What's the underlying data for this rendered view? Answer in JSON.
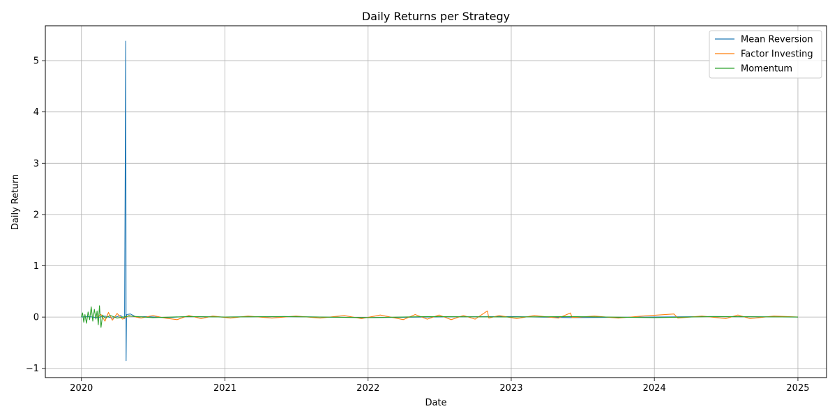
{
  "chart_data": {
    "type": "line",
    "title": "Daily Returns per Strategy",
    "xlabel": "Date",
    "ylabel": "Daily Return",
    "xlim": [
      "2019-10-01",
      "2025-03-15"
    ],
    "ylim": [
      -1.18,
      5.68
    ],
    "grid": true,
    "legend_position": "top-right",
    "x_ticks": [
      {
        "label": "2020",
        "date": "2020-01-01"
      },
      {
        "label": "2021",
        "date": "2021-01-01"
      },
      {
        "label": "2022",
        "date": "2022-01-01"
      },
      {
        "label": "2023",
        "date": "2023-01-01"
      },
      {
        "label": "2024",
        "date": "2024-01-01"
      },
      {
        "label": "2025",
        "date": "2025-01-01"
      }
    ],
    "y_ticks": [
      {
        "label": "−1",
        "value": -1
      },
      {
        "label": "0",
        "value": 0
      },
      {
        "label": "1",
        "value": 1
      },
      {
        "label": "2",
        "value": 2
      },
      {
        "label": "3",
        "value": 3
      },
      {
        "label": "4",
        "value": 4
      },
      {
        "label": "5",
        "value": 5
      }
    ],
    "series": [
      {
        "name": "Mean Reversion",
        "color": "#1f77b4",
        "points": [
          [
            "2020-01-01",
            0.0
          ],
          [
            "2020-01-20",
            0.01
          ],
          [
            "2020-02-10",
            -0.01
          ],
          [
            "2020-03-01",
            0.02
          ],
          [
            "2020-03-20",
            -0.02
          ],
          [
            "2020-04-10",
            0.03
          ],
          [
            "2020-04-20",
            -0.03
          ],
          [
            "2020-04-23",
            5.38
          ],
          [
            "2020-04-24",
            -0.85
          ],
          [
            "2020-04-25",
            0.05
          ],
          [
            "2020-05-05",
            0.06
          ],
          [
            "2020-05-20",
            0.0
          ],
          [
            "2020-06-15",
            0.01
          ],
          [
            "2020-08-01",
            -0.01
          ],
          [
            "2020-10-01",
            0.01
          ],
          [
            "2021-01-01",
            0.0
          ],
          [
            "2021-06-01",
            0.01
          ],
          [
            "2022-01-01",
            -0.01
          ],
          [
            "2022-06-01",
            0.0
          ],
          [
            "2023-01-01",
            0.01
          ],
          [
            "2023-06-01",
            -0.01
          ],
          [
            "2024-01-01",
            0.0
          ],
          [
            "2024-06-01",
            0.01
          ],
          [
            "2025-01-01",
            0.0
          ]
        ]
      },
      {
        "name": "Factor Investing",
        "color": "#ff7f0e",
        "points": [
          [
            "2020-02-10",
            0.0
          ],
          [
            "2020-02-20",
            0.05
          ],
          [
            "2020-03-01",
            -0.08
          ],
          [
            "2020-03-10",
            0.09
          ],
          [
            "2020-03-20",
            -0.06
          ],
          [
            "2020-04-01",
            0.07
          ],
          [
            "2020-04-15",
            -0.04
          ],
          [
            "2020-05-01",
            0.03
          ],
          [
            "2020-06-01",
            -0.02
          ],
          [
            "2020-07-01",
            0.03
          ],
          [
            "2020-08-01",
            -0.02
          ],
          [
            "2020-09-01",
            -0.05
          ],
          [
            "2020-10-01",
            0.03
          ],
          [
            "2020-11-01",
            -0.03
          ],
          [
            "2020-12-01",
            0.02
          ],
          [
            "2021-01-15",
            -0.02
          ],
          [
            "2021-03-01",
            0.02
          ],
          [
            "2021-05-01",
            -0.02
          ],
          [
            "2021-07-01",
            0.02
          ],
          [
            "2021-09-01",
            -0.02
          ],
          [
            "2021-11-01",
            0.03
          ],
          [
            "2021-12-15",
            -0.03
          ],
          [
            "2022-02-01",
            0.04
          ],
          [
            "2022-04-01",
            -0.05
          ],
          [
            "2022-05-01",
            0.05
          ],
          [
            "2022-06-01",
            -0.04
          ],
          [
            "2022-07-01",
            0.04
          ],
          [
            "2022-08-01",
            -0.05
          ],
          [
            "2022-09-01",
            0.03
          ],
          [
            "2022-10-01",
            -0.04
          ],
          [
            "2022-11-01",
            0.12
          ],
          [
            "2022-11-05",
            -0.02
          ],
          [
            "2022-12-01",
            0.03
          ],
          [
            "2023-01-15",
            -0.03
          ],
          [
            "2023-03-01",
            0.03
          ],
          [
            "2023-05-01",
            -0.02
          ],
          [
            "2023-06-01",
            0.08
          ],
          [
            "2023-06-05",
            -0.01
          ],
          [
            "2023-08-01",
            0.02
          ],
          [
            "2023-10-01",
            -0.02
          ],
          [
            "2023-12-01",
            0.02
          ],
          [
            "2024-02-20",
            0.06
          ],
          [
            "2024-03-01",
            -0.02
          ],
          [
            "2024-05-01",
            0.02
          ],
          [
            "2024-07-01",
            -0.03
          ],
          [
            "2024-08-01",
            0.04
          ],
          [
            "2024-09-01",
            -0.03
          ],
          [
            "2024-11-01",
            0.02
          ],
          [
            "2025-01-01",
            0.0
          ]
        ]
      },
      {
        "name": "Momentum",
        "color": "#2ca02c",
        "points": [
          [
            "2020-01-01",
            0.0
          ],
          [
            "2020-01-04",
            0.08
          ],
          [
            "2020-01-07",
            -0.1
          ],
          [
            "2020-01-10",
            0.05
          ],
          [
            "2020-01-14",
            -0.12
          ],
          [
            "2020-01-18",
            0.1
          ],
          [
            "2020-01-22",
            -0.05
          ],
          [
            "2020-01-26",
            0.2
          ],
          [
            "2020-01-30",
            -0.08
          ],
          [
            "2020-02-03",
            0.15
          ],
          [
            "2020-02-07",
            -0.04
          ],
          [
            "2020-02-10",
            0.12
          ],
          [
            "2020-02-13",
            -0.15
          ],
          [
            "2020-02-16",
            0.22
          ],
          [
            "2020-02-20",
            -0.2
          ],
          [
            "2020-02-24",
            0.04
          ],
          [
            "2020-03-01",
            -0.02
          ],
          [
            "2020-03-15",
            0.03
          ],
          [
            "2020-04-01",
            -0.02
          ],
          [
            "2020-05-01",
            0.02
          ],
          [
            "2020-07-01",
            -0.01
          ],
          [
            "2020-10-01",
            0.01
          ],
          [
            "2021-01-01",
            0.0
          ],
          [
            "2021-06-01",
            0.01
          ],
          [
            "2022-01-01",
            -0.01
          ],
          [
            "2022-06-01",
            0.01
          ],
          [
            "2023-01-01",
            0.0
          ],
          [
            "2023-06-01",
            0.01
          ],
          [
            "2024-01-01",
            -0.01
          ],
          [
            "2024-06-01",
            0.01
          ],
          [
            "2025-01-01",
            0.0
          ]
        ]
      }
    ]
  }
}
